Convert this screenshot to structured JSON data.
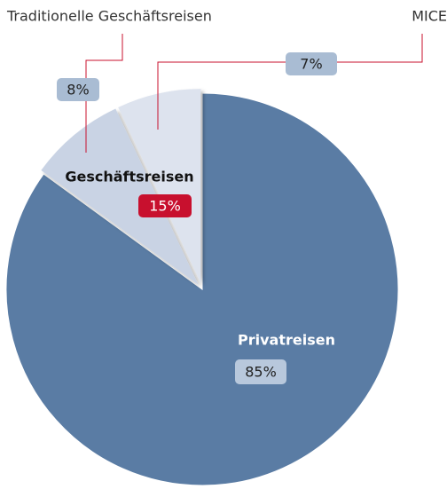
{
  "chart_data": {
    "type": "pie",
    "categories": [
      "Privatreisen",
      "Traditionelle Geschäftsreisen",
      "MICE"
    ],
    "values": [
      85,
      8,
      7
    ],
    "value_labels": [
      "85%",
      "8%",
      "7%"
    ],
    "colors": [
      "#5a7ca4",
      "#c9d3e4",
      "#dde3ee"
    ],
    "group": {
      "name": "Geschäftsreisen",
      "value": 15,
      "value_label": "15%"
    }
  }
}
